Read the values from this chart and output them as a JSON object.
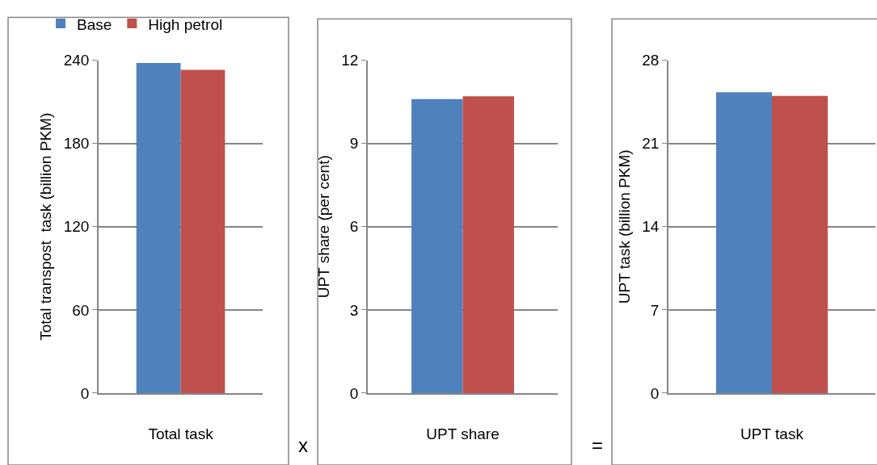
{
  "chart_data": [
    {
      "type": "bar",
      "categories": [
        "Total task"
      ],
      "ylabel": "Total transpost  task (billion PKM)",
      "ylim": [
        0,
        240
      ],
      "yticks": [
        0,
        60,
        120,
        180,
        240
      ],
      "grid": "y",
      "legend": "top",
      "series": [
        {
          "name": "Base",
          "color": "#4f81bd",
          "values": [
            238
          ]
        },
        {
          "name": "High petrol",
          "color": "#c0504d",
          "values": [
            233
          ]
        }
      ]
    },
    {
      "type": "bar",
      "categories": [
        "UPT share"
      ],
      "ylabel": "UPT share (per cent)",
      "ylim": [
        0,
        12
      ],
      "yticks": [
        0,
        3,
        6,
        9,
        12
      ],
      "grid": "y",
      "annotations": [
        "x"
      ],
      "series": [
        {
          "color": "#4f81bd",
          "values": [
            10.6
          ]
        },
        {
          "color": "#c0504d",
          "values": [
            10.7
          ]
        }
      ]
    },
    {
      "type": "bar",
      "categories": [
        "UPT task"
      ],
      "ylabel": "UPT task (billion PKM)",
      "ylim": [
        0,
        28
      ],
      "yticks": [
        0,
        7,
        14,
        21,
        28
      ],
      "grid": "y",
      "annotations": [
        "="
      ],
      "series": [
        {
          "color": "#4f81bd",
          "values": [
            25.3
          ]
        },
        {
          "color": "#c0504d",
          "values": [
            25.0
          ]
        }
      ]
    }
  ]
}
